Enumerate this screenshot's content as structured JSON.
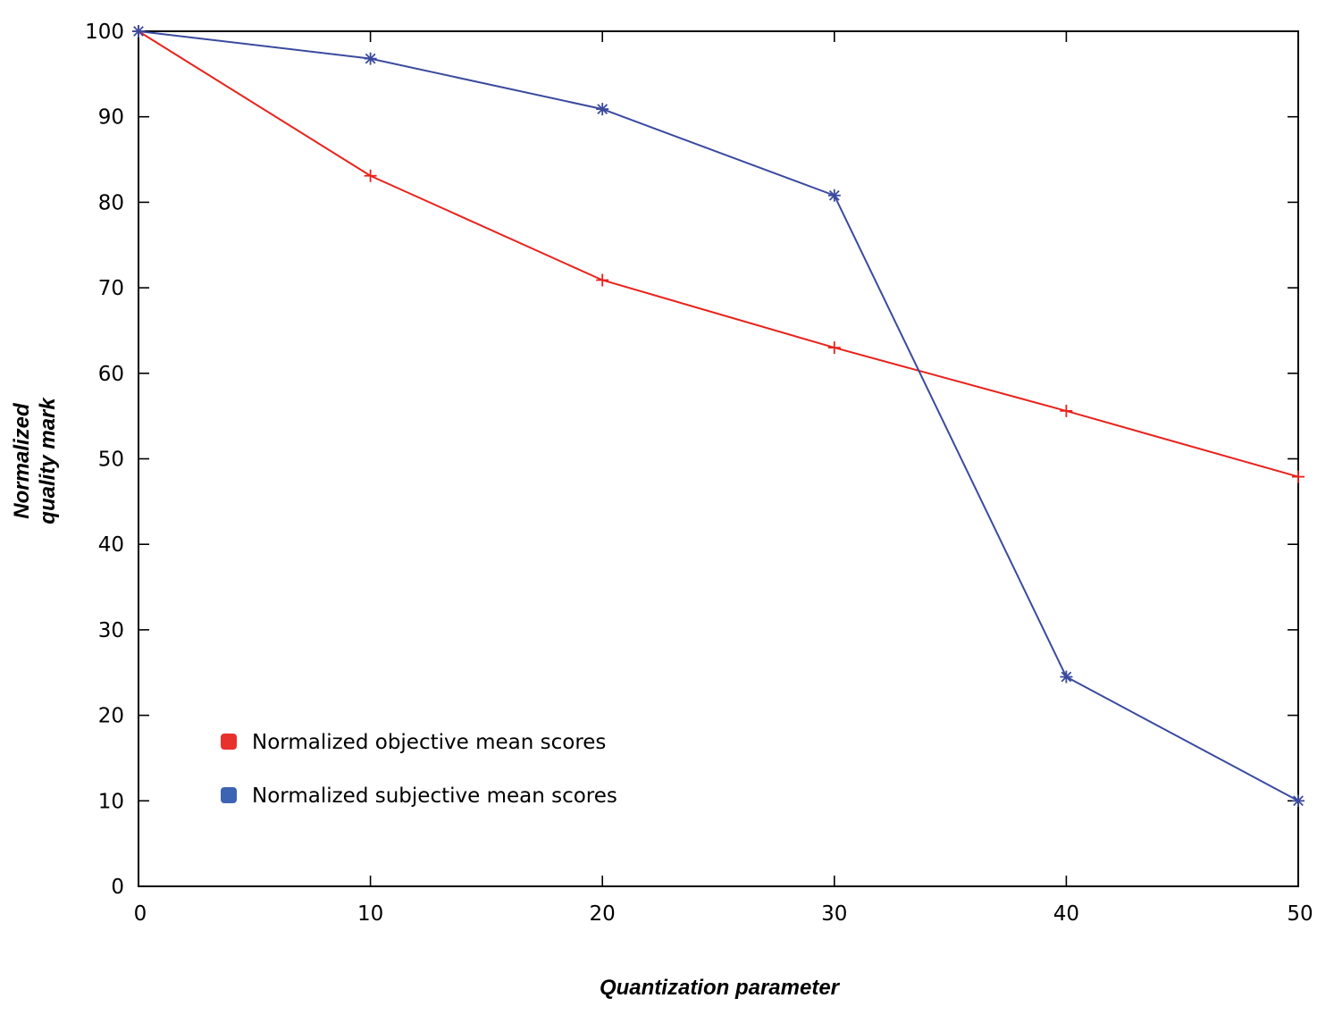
{
  "chart_data": {
    "type": "line",
    "title": "",
    "xlabel": "Quantization parameter",
    "ylabel_lines": [
      "Normalized",
      "quality mark"
    ],
    "xlim": [
      0,
      50
    ],
    "ylim": [
      0,
      100
    ],
    "x_ticks": [
      0,
      10,
      20,
      30,
      40,
      50
    ],
    "y_ticks": [
      0,
      10,
      20,
      30,
      40,
      50,
      60,
      70,
      80,
      90,
      100
    ],
    "grid": false,
    "legend_position": "lower-left",
    "x": [
      0,
      10,
      20,
      30,
      40,
      50
    ],
    "series": [
      {
        "name": "Normalized objective mean scores",
        "values": [
          100,
          83.1,
          70.9,
          63.0,
          55.6,
          47.9
        ],
        "color": "#e8221c",
        "legend_color": "#e8302c",
        "marker": "plus"
      },
      {
        "name": "Normalized subjective mean scores",
        "values": [
          100,
          96.8,
          90.9,
          80.8,
          24.5,
          10.0
        ],
        "color": "#3a4a9e",
        "legend_color": "#3d63b4",
        "marker": "star"
      }
    ]
  }
}
